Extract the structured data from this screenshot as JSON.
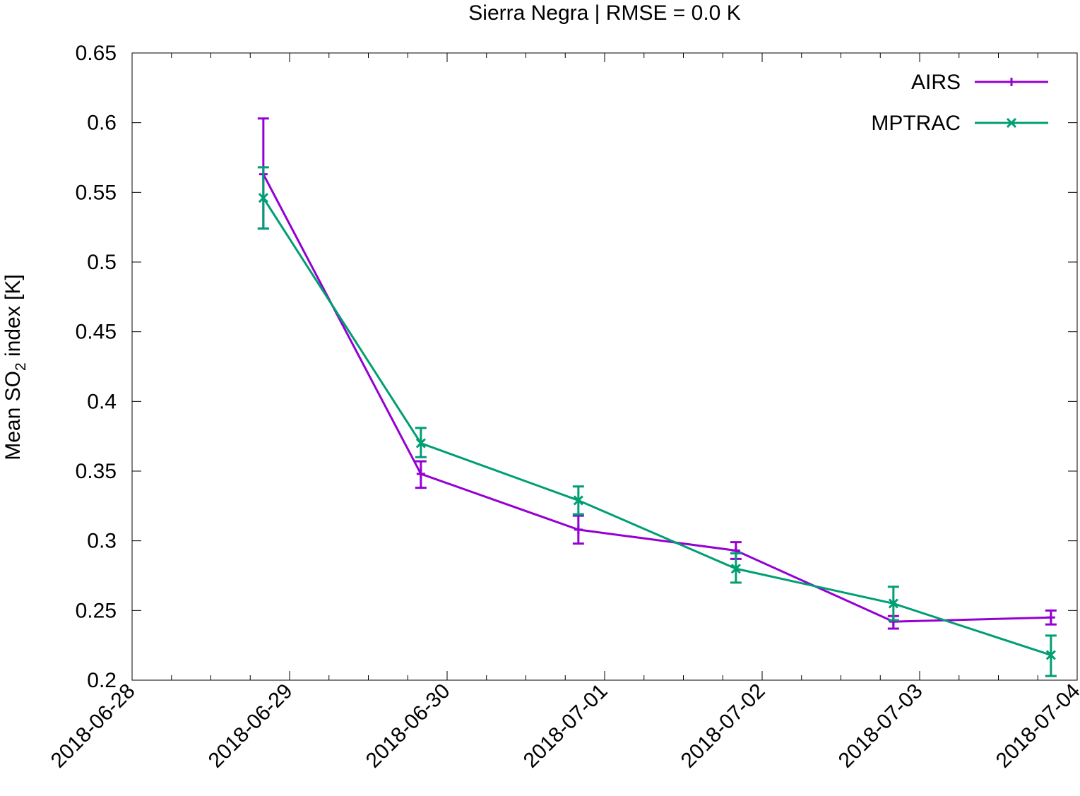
{
  "chart_data": {
    "type": "line",
    "title": "Sierra Negra | RMSE = 0.0 K",
    "xlabel": "",
    "ylabel": {
      "prefix": "Mean SO",
      "subscript": "2",
      "suffix": " index [K]"
    },
    "x_ticks": [
      "2018-06-28",
      "2018-06-29",
      "2018-06-30",
      "2018-07-01",
      "2018-07-02",
      "2018-07-03",
      "2018-07-04"
    ],
    "xlim": [
      "2018-06-28T00:00",
      "2018-07-04T00:00"
    ],
    "ylim": [
      0.2,
      0.65
    ],
    "y_ticks": [
      "0.2",
      "0.25",
      "0.3",
      "0.35",
      "0.4",
      "0.45",
      "0.5",
      "0.55",
      "0.6",
      "0.65"
    ],
    "grid": false,
    "legend_position": "top-right",
    "series": [
      {
        "name": "AIRS",
        "color": "#9400d3",
        "marker": "plus",
        "x": [
          "2018-06-28T20:00",
          "2018-06-29T20:00",
          "2018-06-30T20:00",
          "2018-07-01T20:00",
          "2018-07-02T20:00",
          "2018-07-03T20:00"
        ],
        "y": [
          0.563,
          0.348,
          0.308,
          0.293,
          0.242,
          0.245
        ],
        "err_low": [
          0.524,
          0.338,
          0.298,
          0.287,
          0.237,
          0.24
        ],
        "err_high": [
          0.603,
          0.357,
          0.318,
          0.299,
          0.246,
          0.25
        ]
      },
      {
        "name": "MPTRAC",
        "color": "#009e73",
        "marker": "x",
        "x": [
          "2018-06-28T20:00",
          "2018-06-29T20:00",
          "2018-06-30T20:00",
          "2018-07-01T20:00",
          "2018-07-02T20:00",
          "2018-07-03T20:00"
        ],
        "y": [
          0.546,
          0.37,
          0.329,
          0.28,
          0.255,
          0.218
        ],
        "err_low": [
          0.524,
          0.36,
          0.319,
          0.27,
          0.243,
          0.203
        ],
        "err_high": [
          0.568,
          0.381,
          0.339,
          0.291,
          0.267,
          0.232
        ]
      }
    ]
  }
}
